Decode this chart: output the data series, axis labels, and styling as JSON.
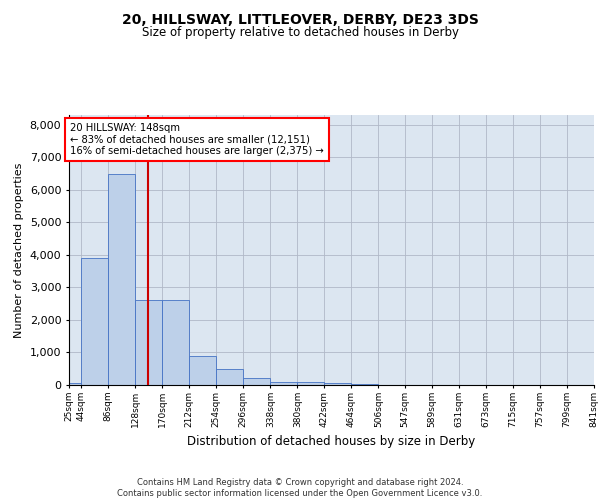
{
  "title": "20, HILLSWAY, LITTLEOVER, DERBY, DE23 3DS",
  "subtitle": "Size of property relative to detached houses in Derby",
  "xlabel": "Distribution of detached houses by size in Derby",
  "ylabel": "Number of detached properties",
  "footer_line1": "Contains HM Land Registry data © Crown copyright and database right 2024.",
  "footer_line2": "Contains public sector information licensed under the Open Government Licence v3.0.",
  "annotation_line1": "20 HILLSWAY: 148sqm",
  "annotation_line2": "← 83% of detached houses are smaller (12,151)",
  "annotation_line3": "16% of semi-detached houses are larger (2,375) →",
  "property_size": 148,
  "bin_edges": [
    25,
    44,
    86,
    128,
    170,
    212,
    254,
    296,
    338,
    380,
    422,
    464,
    506,
    547,
    589,
    631,
    673,
    715,
    757,
    799,
    841
  ],
  "bar_values": [
    50,
    3900,
    6500,
    2600,
    2600,
    900,
    500,
    200,
    100,
    80,
    50,
    30,
    15,
    10,
    5,
    5,
    3,
    2,
    1,
    1
  ],
  "bar_color": "#bdd0e9",
  "bar_edge_color": "#4472c4",
  "vline_color": "#cc0000",
  "grid_color": "#b0b8c8",
  "background_color": "#dce6f1",
  "ylim": [
    0,
    8300
  ],
  "yticks": [
    0,
    1000,
    2000,
    3000,
    4000,
    5000,
    6000,
    7000,
    8000
  ]
}
